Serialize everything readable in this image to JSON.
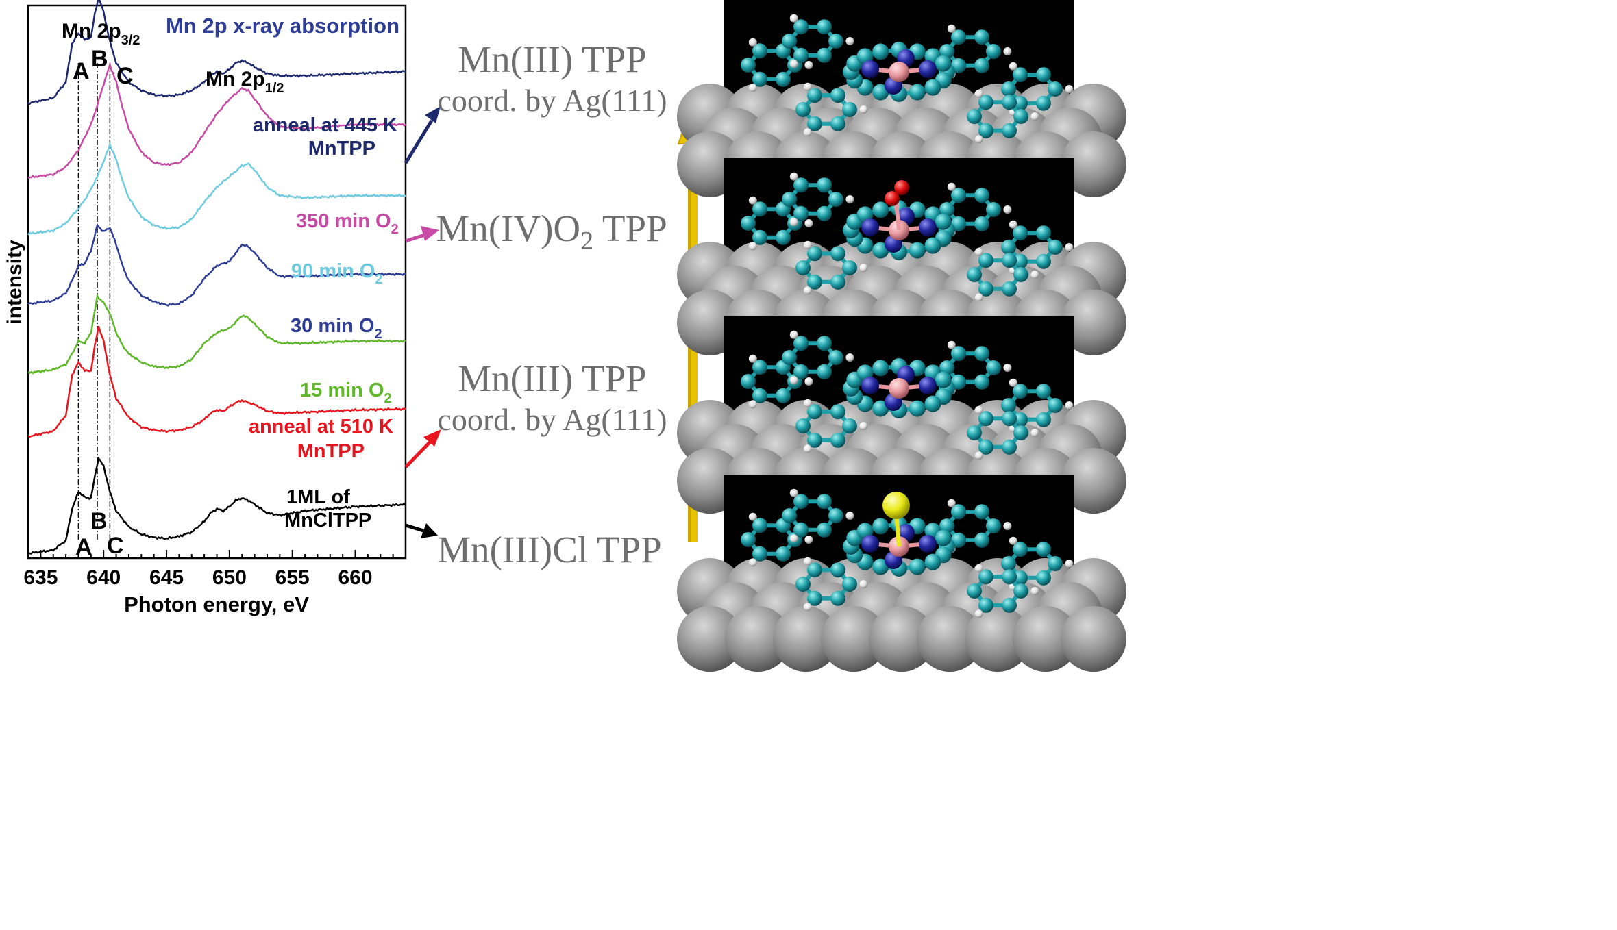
{
  "chart_data": {
    "type": "line",
    "title": "Mn 2p x-ray absorption",
    "xlabel": "Photon energy, eV",
    "ylabel": "intensity",
    "xlim": [
      634,
      664
    ],
    "xticks": [
      "635",
      "640",
      "645",
      "650",
      "655",
      "660"
    ],
    "grid": false,
    "edge_labels": {
      "mn2p32": "Mn 2p",
      "mn2p32_sub": "3/2",
      "mn2p12": "Mn 2p",
      "mn2p12_sub": "1/2"
    },
    "peak_lines": {
      "A": 638.0,
      "B": 639.5,
      "C": 640.5
    },
    "peak_labels": {
      "top_A": "A",
      "top_B": "B",
      "top_C": "C",
      "bottom_A": "A",
      "bottom_B": "B",
      "bottom_C": "C"
    },
    "series": [
      {
        "line1": "1ML of",
        "line2": "MnClTPP",
        "color": "#000000",
        "offset": 0.0,
        "x": [
          634,
          636,
          637,
          637.5,
          638,
          638.5,
          639,
          639.3,
          639.6,
          640,
          640.5,
          641,
          642,
          643,
          644,
          645,
          646,
          647,
          648,
          648.5,
          649,
          649.5,
          650,
          650.5,
          651,
          651.5,
          652,
          653,
          654,
          656,
          658,
          660,
          664
        ],
        "y": [
          0.0,
          0.03,
          0.12,
          0.42,
          0.58,
          0.53,
          0.52,
          0.72,
          0.9,
          0.82,
          0.58,
          0.4,
          0.25,
          0.18,
          0.15,
          0.14,
          0.16,
          0.2,
          0.3,
          0.38,
          0.42,
          0.4,
          0.44,
          0.5,
          0.52,
          0.5,
          0.46,
          0.38,
          0.36,
          0.4,
          0.42,
          0.44,
          0.46
        ]
      },
      {
        "line1": "anneal at 510 K",
        "line2": "MnTPP",
        "color": "#e8141e",
        "offset": 1.0,
        "x": [
          634,
          636,
          637,
          637.5,
          638,
          638.5,
          639,
          639.3,
          639.6,
          640,
          640.5,
          641,
          642,
          643,
          644,
          645,
          646,
          647,
          648,
          648.5,
          649,
          649.5,
          650,
          650.5,
          651,
          651.5,
          652,
          653,
          654,
          656,
          658,
          660,
          664
        ],
        "y": [
          0.1,
          0.15,
          0.3,
          0.68,
          0.8,
          0.72,
          0.72,
          0.95,
          1.14,
          1.0,
          0.68,
          0.46,
          0.28,
          0.19,
          0.16,
          0.15,
          0.16,
          0.19,
          0.26,
          0.32,
          0.35,
          0.34,
          0.38,
          0.42,
          0.44,
          0.42,
          0.4,
          0.34,
          0.32,
          0.33,
          0.34,
          0.35,
          0.36
        ]
      },
      {
        "line1": "15 min O",
        "line2": "2",
        "color": "#5fb82a",
        "offset": 1.58,
        "x": [
          634,
          636,
          637,
          637.5,
          638,
          638.5,
          639,
          639.5,
          640,
          640.5,
          641,
          641.5,
          642,
          643,
          644,
          645,
          646,
          647,
          648,
          649,
          650,
          651,
          651.5,
          652,
          653,
          654,
          656,
          658,
          660,
          664
        ],
        "y": [
          0.12,
          0.15,
          0.2,
          0.3,
          0.42,
          0.4,
          0.5,
          0.84,
          0.78,
          0.68,
          0.5,
          0.38,
          0.3,
          0.22,
          0.18,
          0.17,
          0.18,
          0.25,
          0.4,
          0.5,
          0.54,
          0.66,
          0.64,
          0.58,
          0.46,
          0.4,
          0.4,
          0.41,
          0.42,
          0.42
        ]
      },
      {
        "line1": "30 min O",
        "line2": "2",
        "color": "#2e3d96",
        "offset": 2.23,
        "x": [
          634,
          636,
          637,
          637.5,
          638,
          638.5,
          639,
          639.5,
          640,
          640.5,
          641,
          641.5,
          642,
          643,
          644,
          645,
          646,
          647,
          648,
          649,
          650,
          651,
          651.5,
          652,
          653,
          654,
          656,
          658,
          660,
          664
        ],
        "y": [
          0.12,
          0.15,
          0.22,
          0.34,
          0.48,
          0.5,
          0.62,
          0.86,
          0.8,
          0.84,
          0.68,
          0.48,
          0.34,
          0.2,
          0.14,
          0.11,
          0.12,
          0.2,
          0.36,
          0.48,
          0.52,
          0.68,
          0.66,
          0.6,
          0.46,
          0.38,
          0.38,
          0.39,
          0.4,
          0.4
        ]
      },
      {
        "line1": "90 min O",
        "line2": "2",
        "color": "#6fcbe0",
        "offset": 2.89,
        "x": [
          634,
          636,
          637,
          638,
          638.5,
          639,
          639.5,
          640,
          640.5,
          641,
          641.5,
          642,
          643,
          644,
          645,
          646,
          647,
          648,
          649,
          650,
          651,
          651.5,
          652,
          653,
          654,
          656,
          658,
          660,
          664
        ],
        "y": [
          0.12,
          0.15,
          0.22,
          0.36,
          0.44,
          0.54,
          0.66,
          0.8,
          0.96,
          0.82,
          0.62,
          0.46,
          0.28,
          0.2,
          0.17,
          0.18,
          0.26,
          0.42,
          0.56,
          0.66,
          0.76,
          0.78,
          0.72,
          0.56,
          0.48,
          0.46,
          0.47,
          0.48,
          0.48
        ]
      },
      {
        "line1": "350 min O",
        "line2": "2",
        "color": "#c94aa5",
        "offset": 3.42,
        "x": [
          634,
          636,
          637,
          638,
          638.5,
          639,
          639.5,
          640,
          640.5,
          641,
          641.5,
          642,
          643,
          644,
          645,
          646,
          647,
          648,
          649,
          650,
          651,
          651.5,
          652,
          653,
          654,
          656,
          658,
          660,
          664
        ],
        "y": [
          0.12,
          0.15,
          0.22,
          0.38,
          0.5,
          0.62,
          0.8,
          1.0,
          1.18,
          1.02,
          0.78,
          0.58,
          0.36,
          0.26,
          0.24,
          0.26,
          0.36,
          0.54,
          0.72,
          0.86,
          0.96,
          0.94,
          0.86,
          0.7,
          0.6,
          0.58,
          0.6,
          0.62,
          0.62
        ]
      },
      {
        "line1": "anneal at 445 K",
        "line2": "MnTPP",
        "color": "#1f2a6e",
        "offset": 4.14,
        "x": [
          634,
          636,
          637,
          637.5,
          638,
          638.5,
          639,
          639.3,
          639.6,
          640,
          640.5,
          641,
          642,
          643,
          644,
          645,
          646,
          647,
          648,
          648.5,
          649,
          649.5,
          650,
          650.5,
          651,
          651.5,
          652,
          653,
          654,
          656,
          658,
          660,
          664
        ],
        "y": [
          0.1,
          0.15,
          0.3,
          0.66,
          0.76,
          0.7,
          0.72,
          0.94,
          1.1,
          0.96,
          0.68,
          0.48,
          0.3,
          0.22,
          0.18,
          0.17,
          0.18,
          0.22,
          0.3,
          0.36,
          0.4,
          0.38,
          0.42,
          0.48,
          0.5,
          0.48,
          0.44,
          0.38,
          0.36,
          0.36,
          0.37,
          0.38,
          0.4
        ]
      }
    ]
  },
  "states": [
    {
      "line1": "Mn(III) TPP",
      "line2": "coord. by Ag(111)"
    },
    {
      "main": "Mn(IV)O",
      "sub": "2",
      "rest": " TPP"
    },
    {
      "line1": "Mn(III) TPP",
      "line2": "coord. by Ag(111)"
    },
    {
      "line1": "Mn(III)Cl TPP"
    }
  ],
  "colors": {
    "axis": "#000000",
    "title": "#2e3d96",
    "state_text": "#6e6e6e",
    "sequence_arrow": "#e8c200",
    "panel_bg": "#000000",
    "atom_c": "#1fa0a8",
    "atom_n": "#2328a0",
    "atom_mn": "#e89aa0",
    "atom_o": "#e01010",
    "atom_cl": "#e8e818",
    "atom_h": "#f0f0f0",
    "surface": "#909090"
  }
}
